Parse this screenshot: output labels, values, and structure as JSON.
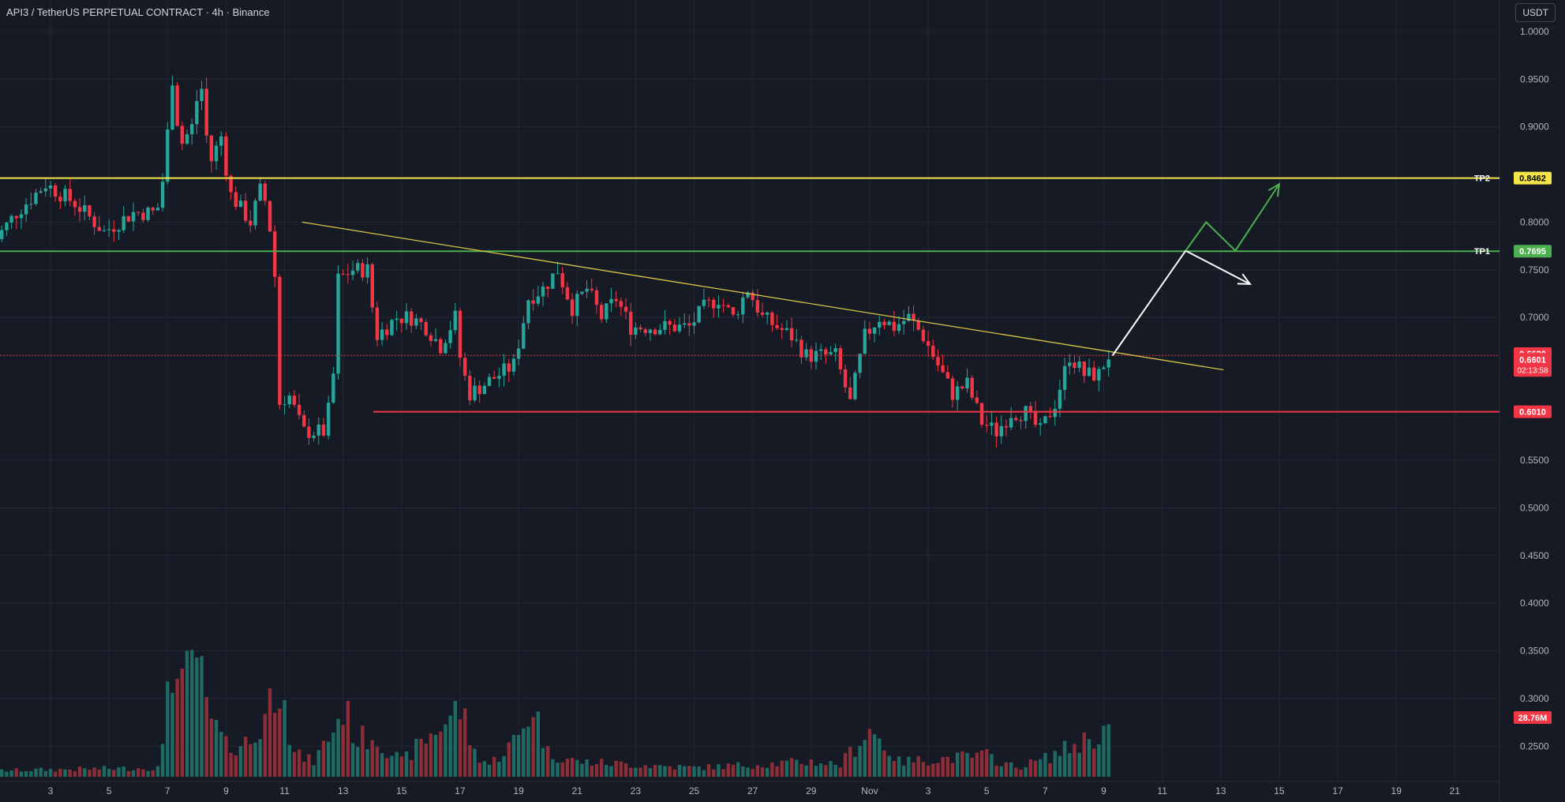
{
  "header": {
    "title": "API3 / TetherUS PERPETUAL CONTRACT · 4h · Binance",
    "currency": "USDT"
  },
  "colors": {
    "background": "#161a25",
    "grid": "#232734",
    "text": "#b2b5be",
    "up": "#26a69a",
    "down": "#f23645",
    "up_volume": "#1f6b64",
    "down_volume": "#8c2e38",
    "tp1": "#4caf50",
    "tp2": "#f5e44a",
    "trendline": "#d8c447",
    "support": "#f23645",
    "projection_white": "#ffffff",
    "projection_green": "#4caf50"
  },
  "chart_data": {
    "type": "candlestick",
    "symbol": "API3USDT.P",
    "timeframe": "4h",
    "exchange": "Binance",
    "ylim": [
      0.21,
      1.0
    ],
    "y_ticks": [
      1.0,
      0.95,
      0.9,
      0.8,
      0.75,
      0.7,
      0.55,
      0.5,
      0.45,
      0.4,
      0.35,
      0.3,
      0.25
    ],
    "x_ticks": [
      "3",
      "5",
      "7",
      "9",
      "11",
      "13",
      "15",
      "17",
      "19",
      "21",
      "23",
      "25",
      "27",
      "29",
      "Nov",
      "3",
      "5",
      "7",
      "9",
      "11",
      "13",
      "15",
      "17",
      "19",
      "21"
    ],
    "x_tick_days": [
      3,
      5,
      7,
      9,
      11,
      13,
      15,
      17,
      19,
      21,
      23,
      25,
      27,
      29,
      31,
      33,
      35,
      37,
      39,
      41,
      43,
      45,
      47,
      49,
      51
    ],
    "price_path": [
      [
        1.0,
        0.77
      ],
      [
        2.0,
        0.81
      ],
      [
        3.0,
        0.84
      ],
      [
        4.0,
        0.82
      ],
      [
        5.0,
        0.79
      ],
      [
        6.0,
        0.81
      ],
      [
        6.8,
        0.81
      ],
      [
        7.1,
        0.86
      ],
      [
        7.3,
        0.96
      ],
      [
        7.6,
        0.88
      ],
      [
        8.0,
        0.9
      ],
      [
        8.3,
        0.95
      ],
      [
        8.6,
        0.86
      ],
      [
        9.0,
        0.89
      ],
      [
        9.3,
        0.83
      ],
      [
        10.0,
        0.8
      ],
      [
        10.4,
        0.84
      ],
      [
        10.8,
        0.77
      ],
      [
        11.0,
        0.61
      ],
      [
        11.3,
        0.62
      ],
      [
        11.8,
        0.58
      ],
      [
        12.5,
        0.58
      ],
      [
        12.8,
        0.62
      ],
      [
        13.0,
        0.74
      ],
      [
        13.5,
        0.75
      ],
      [
        14.0,
        0.75
      ],
      [
        14.3,
        0.68
      ],
      [
        15.0,
        0.7
      ],
      [
        15.5,
        0.7
      ],
      [
        16.0,
        0.69
      ],
      [
        16.5,
        0.67
      ],
      [
        17.0,
        0.7
      ],
      [
        17.2,
        0.65
      ],
      [
        17.5,
        0.62
      ],
      [
        18.5,
        0.64
      ],
      [
        19.0,
        0.65
      ],
      [
        19.5,
        0.72
      ],
      [
        20.0,
        0.73
      ],
      [
        20.5,
        0.75
      ],
      [
        21.0,
        0.71
      ],
      [
        21.5,
        0.73
      ],
      [
        22.0,
        0.7
      ],
      [
        22.5,
        0.72
      ],
      [
        23.0,
        0.69
      ],
      [
        23.5,
        0.69
      ],
      [
        24.0,
        0.69
      ],
      [
        25.0,
        0.69
      ],
      [
        25.5,
        0.71
      ],
      [
        26.0,
        0.72
      ],
      [
        26.5,
        0.7
      ],
      [
        27.0,
        0.73
      ],
      [
        27.5,
        0.7
      ],
      [
        28.0,
        0.69
      ],
      [
        28.5,
        0.68
      ],
      [
        29.0,
        0.66
      ],
      [
        30.0,
        0.66
      ],
      [
        30.5,
        0.61
      ],
      [
        31.0,
        0.68
      ],
      [
        31.5,
        0.7
      ],
      [
        32.0,
        0.69
      ],
      [
        32.5,
        0.7
      ],
      [
        33.0,
        0.68
      ],
      [
        33.5,
        0.65
      ],
      [
        34.0,
        0.62
      ],
      [
        34.5,
        0.63
      ],
      [
        35.0,
        0.59
      ],
      [
        35.5,
        0.58
      ],
      [
        36.0,
        0.6
      ],
      [
        36.5,
        0.6
      ],
      [
        37.0,
        0.58
      ],
      [
        37.5,
        0.61
      ],
      [
        38.0,
        0.66
      ],
      [
        38.5,
        0.64
      ],
      [
        39.0,
        0.64
      ],
      [
        39.3,
        0.66
      ]
    ],
    "volume_levels": [
      [
        1,
        0.02
      ],
      [
        6.8,
        0.03
      ],
      [
        7.0,
        0.35
      ],
      [
        7.2,
        0.41
      ],
      [
        7.4,
        0.25
      ],
      [
        8.0,
        0.42
      ],
      [
        8.3,
        0.22
      ],
      [
        9.0,
        0.1
      ],
      [
        10.0,
        0.12
      ],
      [
        11.0,
        0.38
      ],
      [
        11.2,
        0.08
      ],
      [
        12.0,
        0.05
      ],
      [
        12.8,
        0.18
      ],
      [
        13.0,
        0.23
      ],
      [
        13.5,
        0.12
      ],
      [
        14.0,
        0.14
      ],
      [
        15.0,
        0.05
      ],
      [
        17.0,
        0.23
      ],
      [
        17.5,
        0.08
      ],
      [
        18.0,
        0.04
      ],
      [
        19.0,
        0.13
      ],
      [
        19.5,
        0.24
      ],
      [
        20.0,
        0.08
      ],
      [
        21.0,
        0.05
      ],
      [
        25.0,
        0.03
      ],
      [
        29.0,
        0.05
      ],
      [
        30.0,
        0.04
      ],
      [
        31.0,
        0.16
      ],
      [
        32.0,
        0.05
      ],
      [
        35.0,
        0.07
      ],
      [
        36.0,
        0.03
      ],
      [
        37.0,
        0.06
      ],
      [
        39.0,
        0.15
      ],
      [
        39.3,
        0.18
      ]
    ],
    "horizontal_levels": [
      {
        "name": "TP2",
        "price": 0.8462,
        "label": "0.8462",
        "tag": "TP2",
        "color": "#f5e44a",
        "style": "solid"
      },
      {
        "name": "TP1",
        "price": 0.7695,
        "label": "0.7695",
        "tag": "TP1",
        "color": "#4caf50",
        "style": "solid"
      },
      {
        "name": "support",
        "price": 0.601,
        "label": "0.6010",
        "tag": "",
        "color": "#f23645",
        "style": "solid"
      },
      {
        "name": "resistance",
        "price": 0.6601,
        "label": "0.6601",
        "tag": "",
        "color": "#f23645",
        "style": "dotted"
      }
    ],
    "trendline": {
      "from": [
        12.0,
        0.8
      ],
      "to": [
        43.5,
        0.645
      ]
    },
    "price_tags": [
      {
        "price": 0.662,
        "label": "0.6620",
        "color": "#f23645"
      },
      {
        "price": 0.6601,
        "label": "0.6601",
        "sub": "02:13:58",
        "color": "#f23645"
      }
    ],
    "volume_tag": {
      "label": "28.76M",
      "color": "#f23645"
    },
    "projections": {
      "white": [
        [
          39.3,
          0.66
        ],
        [
          41.8,
          0.77
        ],
        [
          44.0,
          0.735
        ]
      ],
      "green": [
        [
          41.8,
          0.77
        ],
        [
          42.5,
          0.8
        ],
        [
          43.5,
          0.77
        ],
        [
          45.0,
          0.84
        ]
      ]
    }
  }
}
